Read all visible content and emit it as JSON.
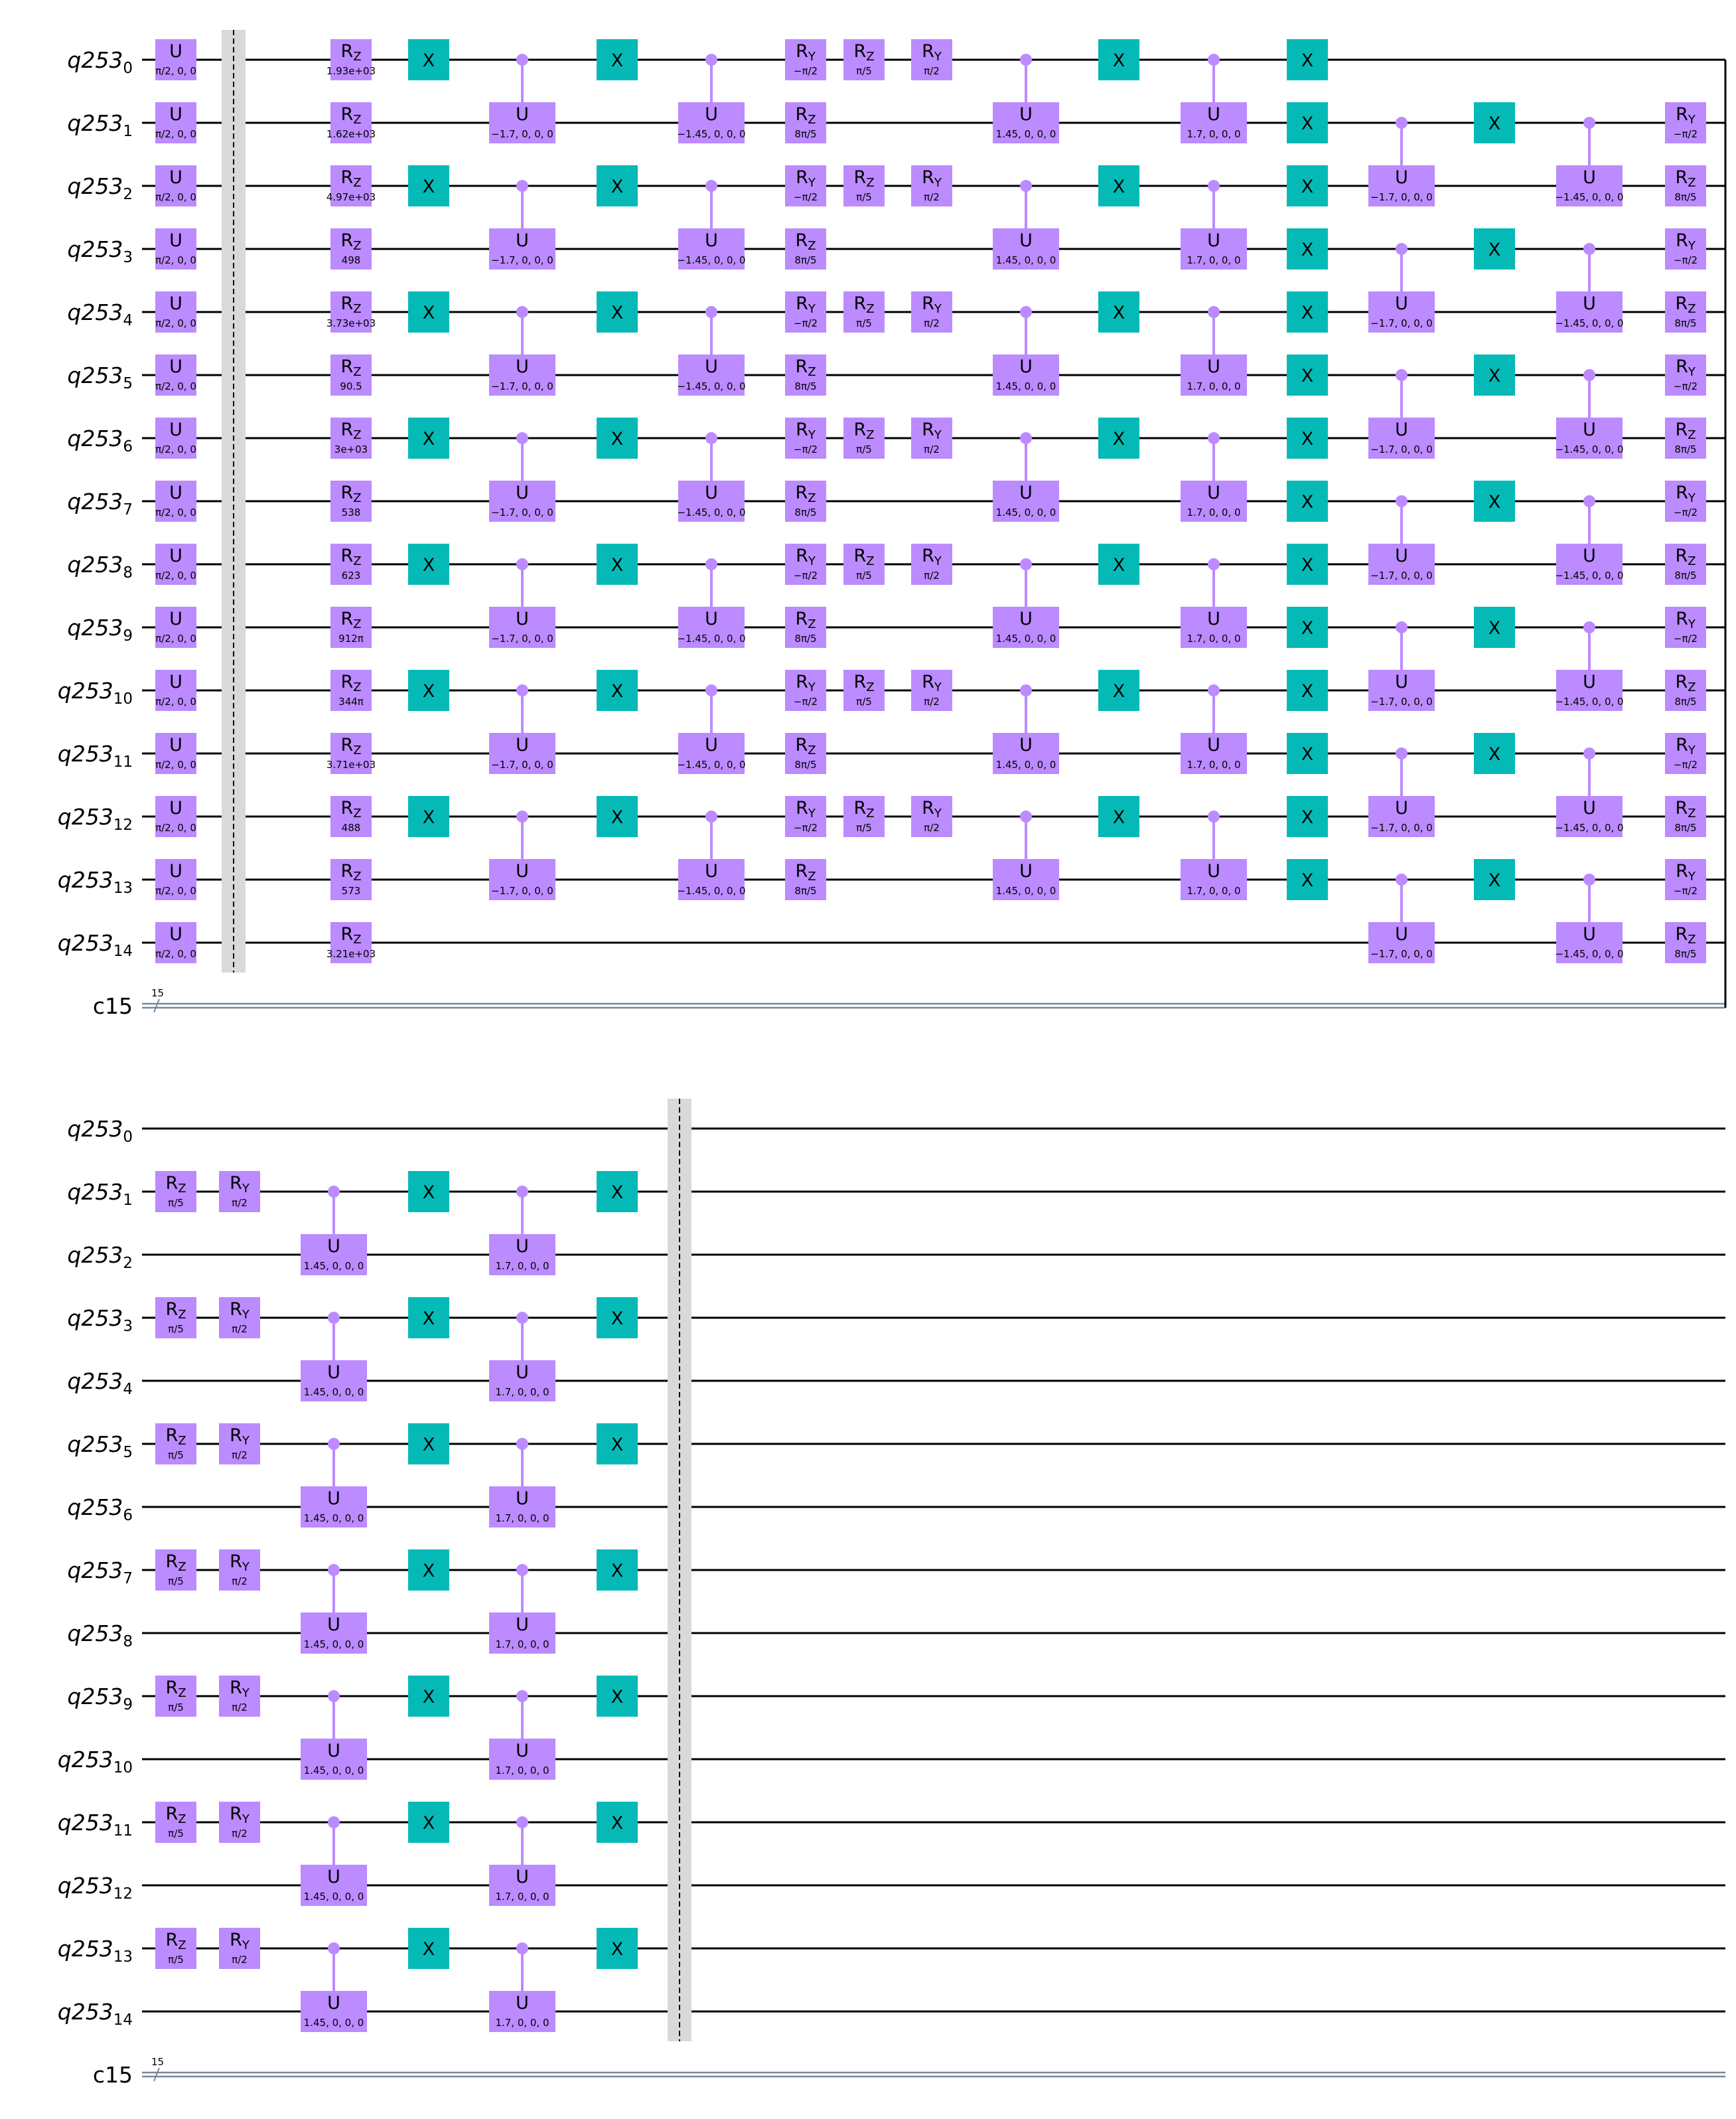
{
  "colors": {
    "gate": "#bb8bff",
    "x_gate": "#05bab6",
    "barrier": "#d9d9d9",
    "wire": "#000000",
    "classical": "#778899"
  },
  "register_prefix": "q253",
  "classical": {
    "label": "c15",
    "size": "15"
  },
  "qubits": [
    "0",
    "1",
    "2",
    "3",
    "4",
    "5",
    "6",
    "7",
    "8",
    "9",
    "10",
    "11",
    "12",
    "13",
    "14"
  ],
  "panels": [
    {
      "columns": [
        {
          "type": "single",
          "gates": [
            {
              "q": 0,
              "name": "U",
              "sub": "",
              "param": "π/2, 0, 0"
            },
            {
              "q": 1,
              "name": "U",
              "sub": "",
              "param": "π/2, 0, 0"
            },
            {
              "q": 2,
              "name": "U",
              "sub": "",
              "param": "π/2, 0, 0"
            },
            {
              "q": 3,
              "name": "U",
              "sub": "",
              "param": "π/2, 0, 0"
            },
            {
              "q": 4,
              "name": "U",
              "sub": "",
              "param": "π/2, 0, 0"
            },
            {
              "q": 5,
              "name": "U",
              "sub": "",
              "param": "π/2, 0, 0"
            },
            {
              "q": 6,
              "name": "U",
              "sub": "",
              "param": "π/2, 0, 0"
            },
            {
              "q": 7,
              "name": "U",
              "sub": "",
              "param": "π/2, 0, 0"
            },
            {
              "q": 8,
              "name": "U",
              "sub": "",
              "param": "π/2, 0, 0"
            },
            {
              "q": 9,
              "name": "U",
              "sub": "",
              "param": "π/2, 0, 0"
            },
            {
              "q": 10,
              "name": "U",
              "sub": "",
              "param": "π/2, 0, 0"
            },
            {
              "q": 11,
              "name": "U",
              "sub": "",
              "param": "π/2, 0, 0"
            },
            {
              "q": 12,
              "name": "U",
              "sub": "",
              "param": "π/2, 0, 0"
            },
            {
              "q": 13,
              "name": "U",
              "sub": "",
              "param": "π/2, 0, 0"
            },
            {
              "q": 14,
              "name": "U",
              "sub": "",
              "param": "π/2, 0, 0"
            }
          ]
        },
        {
          "type": "barrier"
        },
        {
          "type": "single",
          "gates": [
            {
              "q": 0,
              "name": "R",
              "sub": "Z",
              "param": "1.93e+03"
            },
            {
              "q": 1,
              "name": "R",
              "sub": "Z",
              "param": "1.62e+03"
            },
            {
              "q": 2,
              "name": "R",
              "sub": "Z",
              "param": "4.97e+03"
            },
            {
              "q": 3,
              "name": "R",
              "sub": "Z",
              "param": "498"
            },
            {
              "q": 4,
              "name": "R",
              "sub": "Z",
              "param": "3.73e+03"
            },
            {
              "q": 5,
              "name": "R",
              "sub": "Z",
              "param": "90.5"
            },
            {
              "q": 6,
              "name": "R",
              "sub": "Z",
              "param": "3e+03"
            },
            {
              "q": 7,
              "name": "R",
              "sub": "Z",
              "param": "538"
            },
            {
              "q": 8,
              "name": "R",
              "sub": "Z",
              "param": "623"
            },
            {
              "q": 9,
              "name": "R",
              "sub": "Z",
              "param": "912π"
            },
            {
              "q": 10,
              "name": "R",
              "sub": "Z",
              "param": "344π"
            },
            {
              "q": 11,
              "name": "R",
              "sub": "Z",
              "param": "3.71e+03"
            },
            {
              "q": 12,
              "name": "R",
              "sub": "Z",
              "param": "488"
            },
            {
              "q": 13,
              "name": "R",
              "sub": "Z",
              "param": "573"
            },
            {
              "q": 14,
              "name": "R",
              "sub": "Z",
              "param": "3.21e+03"
            }
          ]
        },
        {
          "type": "x",
          "qubits": [
            0,
            2,
            4,
            6,
            8,
            10,
            12
          ]
        },
        {
          "type": "cu",
          "pairs": [
            [
              0,
              1
            ],
            [
              2,
              3
            ],
            [
              4,
              5
            ],
            [
              6,
              7
            ],
            [
              8,
              9
            ],
            [
              10,
              11
            ],
            [
              12,
              13
            ]
          ],
          "param": "−1.7, 0, 0, 0"
        },
        {
          "type": "x",
          "qubits": [
            0,
            2,
            4,
            6,
            8,
            10,
            12
          ]
        },
        {
          "type": "cu",
          "pairs": [
            [
              0,
              1
            ],
            [
              2,
              3
            ],
            [
              4,
              5
            ],
            [
              6,
              7
            ],
            [
              8,
              9
            ],
            [
              10,
              11
            ],
            [
              12,
              13
            ]
          ],
          "param": "−1.45, 0, 0, 0"
        },
        {
          "type": "single",
          "gates": [
            {
              "q": 0,
              "name": "R",
              "sub": "Y",
              "param": "−π/2"
            },
            {
              "q": 1,
              "name": "R",
              "sub": "Z",
              "param": "8π/5"
            },
            {
              "q": 2,
              "name": "R",
              "sub": "Y",
              "param": "−π/2"
            },
            {
              "q": 3,
              "name": "R",
              "sub": "Z",
              "param": "8π/5"
            },
            {
              "q": 4,
              "name": "R",
              "sub": "Y",
              "param": "−π/2"
            },
            {
              "q": 5,
              "name": "R",
              "sub": "Z",
              "param": "8π/5"
            },
            {
              "q": 6,
              "name": "R",
              "sub": "Y",
              "param": "−π/2"
            },
            {
              "q": 7,
              "name": "R",
              "sub": "Z",
              "param": "8π/5"
            },
            {
              "q": 8,
              "name": "R",
              "sub": "Y",
              "param": "−π/2"
            },
            {
              "q": 9,
              "name": "R",
              "sub": "Z",
              "param": "8π/5"
            },
            {
              "q": 10,
              "name": "R",
              "sub": "Y",
              "param": "−π/2"
            },
            {
              "q": 11,
              "name": "R",
              "sub": "Z",
              "param": "8π/5"
            },
            {
              "q": 12,
              "name": "R",
              "sub": "Y",
              "param": "−π/2"
            },
            {
              "q": 13,
              "name": "R",
              "sub": "Z",
              "param": "8π/5"
            }
          ]
        },
        {
          "type": "single",
          "gates": [
            {
              "q": 0,
              "name": "R",
              "sub": "Z",
              "param": "π/5"
            },
            {
              "q": 2,
              "name": "R",
              "sub": "Z",
              "param": "π/5"
            },
            {
              "q": 4,
              "name": "R",
              "sub": "Z",
              "param": "π/5"
            },
            {
              "q": 6,
              "name": "R",
              "sub": "Z",
              "param": "π/5"
            },
            {
              "q": 8,
              "name": "R",
              "sub": "Z",
              "param": "π/5"
            },
            {
              "q": 10,
              "name": "R",
              "sub": "Z",
              "param": "π/5"
            },
            {
              "q": 12,
              "name": "R",
              "sub": "Z",
              "param": "π/5"
            }
          ]
        },
        {
          "type": "single",
          "gates": [
            {
              "q": 0,
              "name": "R",
              "sub": "Y",
              "param": "π/2"
            },
            {
              "q": 2,
              "name": "R",
              "sub": "Y",
              "param": "π/2"
            },
            {
              "q": 4,
              "name": "R",
              "sub": "Y",
              "param": "π/2"
            },
            {
              "q": 6,
              "name": "R",
              "sub": "Y",
              "param": "π/2"
            },
            {
              "q": 8,
              "name": "R",
              "sub": "Y",
              "param": "π/2"
            },
            {
              "q": 10,
              "name": "R",
              "sub": "Y",
              "param": "π/2"
            },
            {
              "q": 12,
              "name": "R",
              "sub": "Y",
              "param": "π/2"
            }
          ]
        },
        {
          "type": "cu",
          "pairs": [
            [
              0,
              1
            ],
            [
              2,
              3
            ],
            [
              4,
              5
            ],
            [
              6,
              7
            ],
            [
              8,
              9
            ],
            [
              10,
              11
            ],
            [
              12,
              13
            ]
          ],
          "param": "1.45, 0, 0, 0"
        },
        {
          "type": "x",
          "qubits": [
            0,
            2,
            4,
            6,
            8,
            10,
            12
          ]
        },
        {
          "type": "cu",
          "pairs": [
            [
              0,
              1
            ],
            [
              2,
              3
            ],
            [
              4,
              5
            ],
            [
              6,
              7
            ],
            [
              8,
              9
            ],
            [
              10,
              11
            ],
            [
              12,
              13
            ]
          ],
          "param": "1.7, 0, 0, 0"
        },
        {
          "type": "x",
          "qubits": [
            0,
            1,
            2,
            3,
            4,
            5,
            6,
            7,
            8,
            9,
            10,
            11,
            12,
            13
          ]
        },
        {
          "type": "cu",
          "pairs": [
            [
              1,
              2
            ],
            [
              3,
              4
            ],
            [
              5,
              6
            ],
            [
              7,
              8
            ],
            [
              9,
              10
            ],
            [
              11,
              12
            ],
            [
              13,
              14
            ]
          ],
          "param": "−1.7, 0, 0, 0"
        },
        {
          "type": "x",
          "qubits": [
            1,
            3,
            5,
            7,
            9,
            11,
            13
          ]
        },
        {
          "type": "cu",
          "pairs": [
            [
              1,
              2
            ],
            [
              3,
              4
            ],
            [
              5,
              6
            ],
            [
              7,
              8
            ],
            [
              9,
              10
            ],
            [
              11,
              12
            ],
            [
              13,
              14
            ]
          ],
          "param": "−1.45, 0, 0, 0"
        },
        {
          "type": "single",
          "gates": [
            {
              "q": 1,
              "name": "R",
              "sub": "Y",
              "param": "−π/2"
            },
            {
              "q": 2,
              "name": "R",
              "sub": "Z",
              "param": "8π/5"
            },
            {
              "q": 3,
              "name": "R",
              "sub": "Y",
              "param": "−π/2"
            },
            {
              "q": 4,
              "name": "R",
              "sub": "Z",
              "param": "8π/5"
            },
            {
              "q": 5,
              "name": "R",
              "sub": "Y",
              "param": "−π/2"
            },
            {
              "q": 6,
              "name": "R",
              "sub": "Z",
              "param": "8π/5"
            },
            {
              "q": 7,
              "name": "R",
              "sub": "Y",
              "param": "−π/2"
            },
            {
              "q": 8,
              "name": "R",
              "sub": "Z",
              "param": "8π/5"
            },
            {
              "q": 9,
              "name": "R",
              "sub": "Y",
              "param": "−π/2"
            },
            {
              "q": 10,
              "name": "R",
              "sub": "Z",
              "param": "8π/5"
            },
            {
              "q": 11,
              "name": "R",
              "sub": "Y",
              "param": "−π/2"
            },
            {
              "q": 12,
              "name": "R",
              "sub": "Z",
              "param": "8π/5"
            },
            {
              "q": 13,
              "name": "R",
              "sub": "Y",
              "param": "−π/2"
            },
            {
              "q": 14,
              "name": "R",
              "sub": "Z",
              "param": "8π/5"
            }
          ]
        }
      ]
    },
    {
      "columns": [
        {
          "type": "single",
          "gates": [
            {
              "q": 1,
              "name": "R",
              "sub": "Z",
              "param": "π/5"
            },
            {
              "q": 3,
              "name": "R",
              "sub": "Z",
              "param": "π/5"
            },
            {
              "q": 5,
              "name": "R",
              "sub": "Z",
              "param": "π/5"
            },
            {
              "q": 7,
              "name": "R",
              "sub": "Z",
              "param": "π/5"
            },
            {
              "q": 9,
              "name": "R",
              "sub": "Z",
              "param": "π/5"
            },
            {
              "q": 11,
              "name": "R",
              "sub": "Z",
              "param": "π/5"
            },
            {
              "q": 13,
              "name": "R",
              "sub": "Z",
              "param": "π/5"
            }
          ]
        },
        {
          "type": "single",
          "gates": [
            {
              "q": 1,
              "name": "R",
              "sub": "Y",
              "param": "π/2"
            },
            {
              "q": 3,
              "name": "R",
              "sub": "Y",
              "param": "π/2"
            },
            {
              "q": 5,
              "name": "R",
              "sub": "Y",
              "param": "π/2"
            },
            {
              "q": 7,
              "name": "R",
              "sub": "Y",
              "param": "π/2"
            },
            {
              "q": 9,
              "name": "R",
              "sub": "Y",
              "param": "π/2"
            },
            {
              "q": 11,
              "name": "R",
              "sub": "Y",
              "param": "π/2"
            },
            {
              "q": 13,
              "name": "R",
              "sub": "Y",
              "param": "π/2"
            }
          ]
        },
        {
          "type": "cu",
          "pairs": [
            [
              1,
              2
            ],
            [
              3,
              4
            ],
            [
              5,
              6
            ],
            [
              7,
              8
            ],
            [
              9,
              10
            ],
            [
              11,
              12
            ],
            [
              13,
              14
            ]
          ],
          "param": "1.45, 0, 0, 0"
        },
        {
          "type": "x",
          "qubits": [
            1,
            3,
            5,
            7,
            9,
            11,
            13
          ]
        },
        {
          "type": "cu",
          "pairs": [
            [
              1,
              2
            ],
            [
              3,
              4
            ],
            [
              5,
              6
            ],
            [
              7,
              8
            ],
            [
              9,
              10
            ],
            [
              11,
              12
            ],
            [
              13,
              14
            ]
          ],
          "param": "1.7, 0, 0, 0"
        },
        {
          "type": "x",
          "qubits": [
            1,
            3,
            5,
            7,
            9,
            11,
            13
          ]
        },
        {
          "type": "barrier"
        }
      ]
    }
  ]
}
